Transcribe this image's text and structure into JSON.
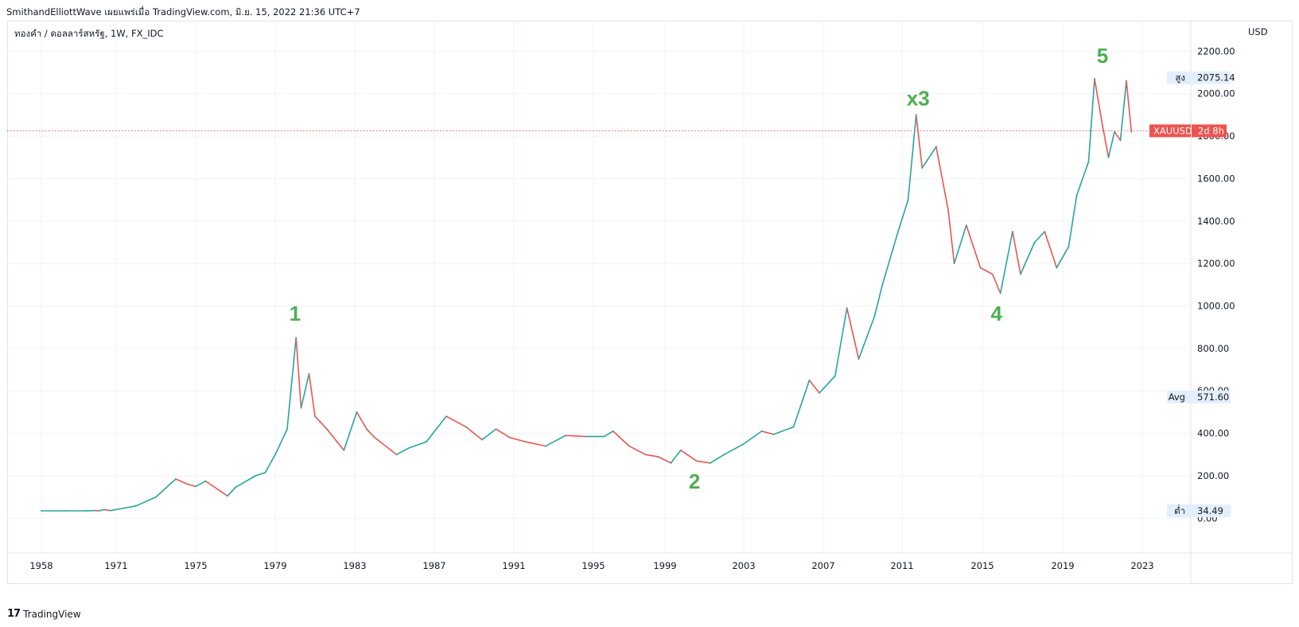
{
  "header": {
    "text": "SmithandElliottWave เผยแพร่เมื่อ TradingView.com, มิ.ย. 15, 2022 21:36 UTC+7"
  },
  "symbol_line": "ทองคำ / ดอลลาร์สหรัฐ, 1W, FX_IDC",
  "footer": {
    "logo": "17",
    "brand": "TradingView"
  },
  "colors": {
    "up": "#26a69a",
    "down": "#ef5350",
    "wave_label": "#4caf50",
    "price_line": "#ef5350",
    "label_bg": "#e3effd"
  },
  "chart_data": {
    "type": "line",
    "symbol": "XAUUSD",
    "interval": "1W",
    "currency": "USD",
    "x_ticks": [
      "1958",
      "1971",
      "1975",
      "1979",
      "1983",
      "1987",
      "1991",
      "1995",
      "1999",
      "2003",
      "2007",
      "2011",
      "2015",
      "2019",
      "2023"
    ],
    "y_ticks": [
      "2200.00",
      "2000.00",
      "1800.00",
      "1600.00",
      "1400.00",
      "1200.00",
      "1000.00",
      "800.00",
      "600.00",
      "400.00",
      "200.00",
      "0.00"
    ],
    "ylim": [
      -160,
      2340
    ],
    "grid": true,
    "series": [
      {
        "values_by_year": [
          [
            1958,
            35
          ],
          [
            1962,
            35
          ],
          [
            1966,
            35
          ],
          [
            1967.2,
            36
          ],
          [
            1968.0,
            35
          ],
          [
            1969,
            41
          ],
          [
            1970,
            36
          ],
          [
            1971,
            41
          ],
          [
            1972,
            58
          ],
          [
            1973,
            100
          ],
          [
            1974,
            185
          ],
          [
            1974.6,
            160
          ],
          [
            1975,
            150
          ],
          [
            1975.5,
            175
          ],
          [
            1976.6,
            105
          ],
          [
            1977,
            145
          ],
          [
            1978,
            200
          ],
          [
            1978.5,
            215
          ],
          [
            1979,
            300
          ],
          [
            1979.6,
            420
          ],
          [
            1980.05,
            850
          ],
          [
            1980.3,
            520
          ],
          [
            1980.7,
            680
          ],
          [
            1981,
            480
          ],
          [
            1981.6,
            420
          ],
          [
            1982.45,
            320
          ],
          [
            1983.1,
            500
          ],
          [
            1983.6,
            420
          ],
          [
            1984,
            380
          ],
          [
            1985.1,
            300
          ],
          [
            1985.7,
            330
          ],
          [
            1986.6,
            360
          ],
          [
            1987.6,
            480
          ],
          [
            1988.6,
            430
          ],
          [
            1989.4,
            370
          ],
          [
            1990.1,
            420
          ],
          [
            1990.8,
            380
          ],
          [
            1991.6,
            360
          ],
          [
            1992.6,
            340
          ],
          [
            1993.6,
            390
          ],
          [
            1994.6,
            385
          ],
          [
            1995.6,
            385
          ],
          [
            1996.1,
            410
          ],
          [
            1997,
            340
          ],
          [
            1997.9,
            300
          ],
          [
            1998.6,
            290
          ],
          [
            1999.3,
            260
          ],
          [
            1999.8,
            320
          ],
          [
            2000.6,
            270
          ],
          [
            2001.3,
            260
          ],
          [
            2002,
            300
          ],
          [
            2003,
            350
          ],
          [
            2003.9,
            410
          ],
          [
            2004.5,
            395
          ],
          [
            2005.5,
            430
          ],
          [
            2006.3,
            650
          ],
          [
            2006.8,
            590
          ],
          [
            2007.6,
            670
          ],
          [
            2008.2,
            990
          ],
          [
            2008.8,
            750
          ],
          [
            2009.6,
            950
          ],
          [
            2010,
            1100
          ],
          [
            2010.8,
            1350
          ],
          [
            2011.3,
            1500
          ],
          [
            2011.7,
            1900
          ],
          [
            2012,
            1650
          ],
          [
            2012.7,
            1750
          ],
          [
            2013.3,
            1450
          ],
          [
            2013.6,
            1200
          ],
          [
            2014.2,
            1380
          ],
          [
            2014.9,
            1180
          ],
          [
            2015.5,
            1150
          ],
          [
            2015.9,
            1060
          ],
          [
            2016.5,
            1350
          ],
          [
            2016.9,
            1150
          ],
          [
            2017.6,
            1300
          ],
          [
            2018.1,
            1350
          ],
          [
            2018.7,
            1180
          ],
          [
            2019.3,
            1280
          ],
          [
            2019.7,
            1520
          ],
          [
            2020.3,
            1680
          ],
          [
            2020.6,
            2070
          ],
          [
            2021.0,
            1850
          ],
          [
            2021.3,
            1700
          ],
          [
            2021.6,
            1820
          ],
          [
            2021.9,
            1780
          ],
          [
            2022.2,
            2060
          ],
          [
            2022.45,
            1820
          ]
        ]
      }
    ],
    "wave_labels": [
      {
        "label": "1",
        "year": 1980.0,
        "price": 930
      },
      {
        "label": "2",
        "year": 2000.5,
        "price": 140
      },
      {
        "label": "x3",
        "year": 2011.8,
        "price": 1945
      },
      {
        "label": "4",
        "year": 2015.7,
        "price": 930
      },
      {
        "label": "5",
        "year": 2021.0,
        "price": 2145
      }
    ],
    "price_labels": [
      {
        "label": "สูง",
        "value": "2075.14"
      },
      {
        "label": "Avg",
        "value": "571.60"
      },
      {
        "label": "ต่ำ",
        "value": "34.49"
      }
    ],
    "last_price": {
      "price": 1825,
      "symbol": "XAUUSD",
      "countdown": "2d 8h"
    }
  }
}
